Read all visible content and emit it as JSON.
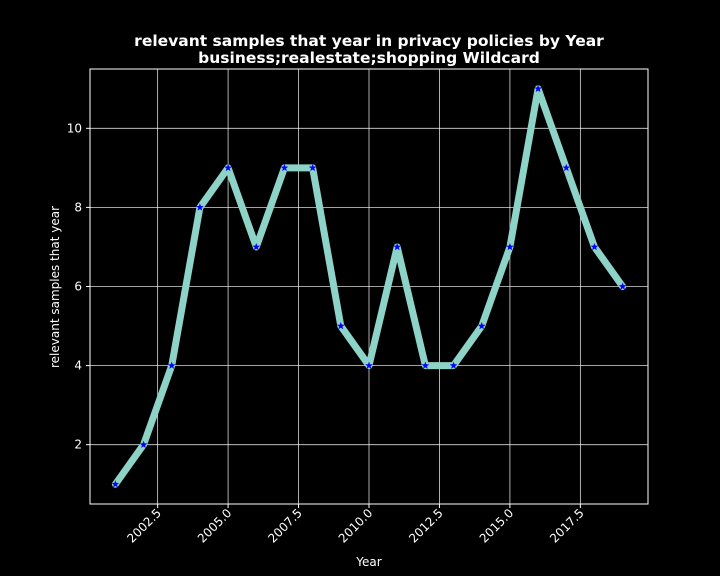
{
  "chart_data": {
    "type": "line",
    "title": "relevant samples that year in privacy policies by Year",
    "subtitle": "business;realestate;shopping Wildcard",
    "xlabel": "Year",
    "ylabel": "relevant samples that year",
    "xlim": [
      2000.1,
      2019.9
    ],
    "ylim": [
      0.5,
      11.5
    ],
    "xticks": [
      2002.5,
      2005.0,
      2007.5,
      2010.0,
      2012.5,
      2015.0,
      2017.5
    ],
    "xtick_labels": [
      "2002.5",
      "2005.0",
      "2007.5",
      "2010.0",
      "2012.5",
      "2015.0",
      "2017.5"
    ],
    "yticks": [
      2,
      4,
      6,
      8,
      10
    ],
    "ytick_labels": [
      "2",
      "4",
      "6",
      "8",
      "10"
    ],
    "grid": true,
    "colors": {
      "background": "#000000",
      "line": "#8dd3c7",
      "marker": "#0000ff",
      "grid": "#ffffff",
      "text": "#ffffff"
    },
    "series": [
      {
        "x": [
          2001,
          2002,
          2003,
          2004,
          2005,
          2006,
          2007,
          2008,
          2009,
          2010,
          2011,
          2012,
          2013,
          2014,
          2015,
          2016,
          2017,
          2018,
          2019
        ],
        "y": [
          1,
          2,
          4,
          8,
          9,
          7,
          9,
          9,
          5,
          4,
          7,
          4,
          4,
          5,
          7,
          11,
          9,
          7,
          6
        ]
      }
    ]
  }
}
